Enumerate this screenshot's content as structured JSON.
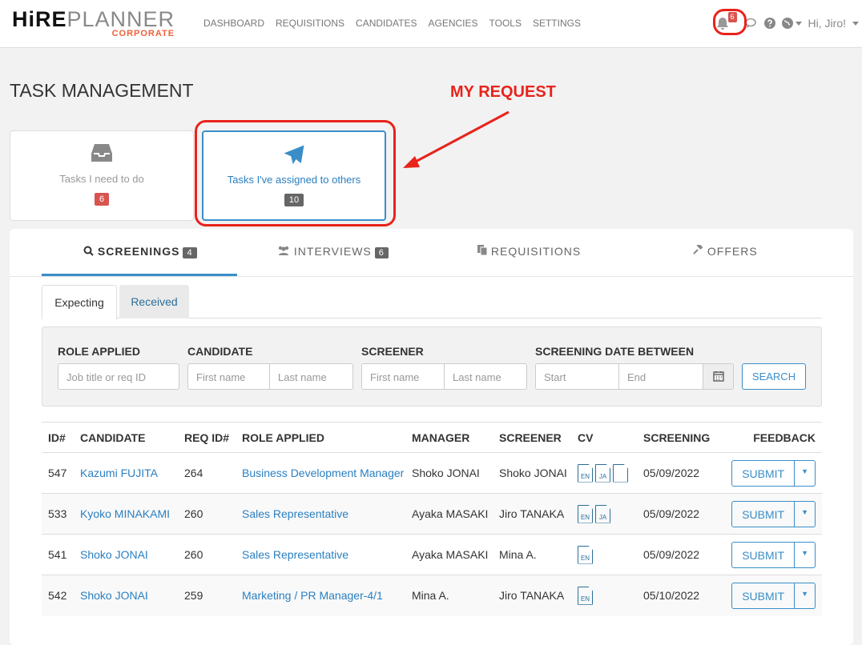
{
  "header": {
    "logo": {
      "hire": "HiRE",
      "planner": "PLANNER",
      "corporate": "CORPORATE"
    },
    "nav": [
      "DASHBOARD",
      "REQUISITIONS",
      "CANDIDATES",
      "AGENCIES",
      "TOOLS",
      "SETTINGS"
    ],
    "notifications": "6",
    "greeting": "Hi, Jiro!"
  },
  "page_title": "TASK MANAGEMENT",
  "annotation": "MY REQUEST",
  "cards": [
    {
      "label": "Tasks I need to do",
      "count": "6"
    },
    {
      "label": "Tasks I've assigned to others",
      "count": "10"
    }
  ],
  "tabs": [
    {
      "label": "SCREENINGS",
      "count": "4"
    },
    {
      "label": "INTERVIEWS",
      "count": "6"
    },
    {
      "label": "REQUISITIONS"
    },
    {
      "label": "OFFERS"
    }
  ],
  "subtabs": [
    "Expecting",
    "Received"
  ],
  "filters": {
    "role_label": "ROLE APPLIED",
    "role_ph": "Job title or req ID",
    "candidate_label": "CANDIDATE",
    "screener_label": "SCREENER",
    "date_label": "SCREENING DATE BETWEEN",
    "first_ph": "First name",
    "last_ph": "Last name",
    "start_ph": "Start",
    "end_ph": "End",
    "search": "SEARCH"
  },
  "table": {
    "headers": [
      "ID#",
      "CANDIDATE",
      "REQ ID#",
      "ROLE APPLIED",
      "MANAGER",
      "SCREENER",
      "CV",
      "SCREENING",
      "FEEDBACK"
    ],
    "rows": [
      {
        "id": "547",
        "candidate": "Kazumi FUJITA",
        "req": "264",
        "role": "Business Development Manager",
        "manager": "Shoko JONAI",
        "screener": "Shoko JONAI",
        "cv": [
          "EN",
          "JA",
          ""
        ],
        "date": "05/09/2022"
      },
      {
        "id": "533",
        "candidate": "Kyoko MINAKAMI",
        "req": "260",
        "role": "Sales Representative",
        "manager": "Ayaka MASAKI",
        "screener": "Jiro TANAKA",
        "cv": [
          "EN",
          "JA"
        ],
        "date": "05/09/2022"
      },
      {
        "id": "541",
        "candidate": "Shoko JONAI",
        "req": "260",
        "role": "Sales Representative",
        "manager": "Ayaka MASAKI",
        "screener": "Mina A.",
        "cv": [
          "EN"
        ],
        "date": "05/09/2022"
      },
      {
        "id": "542",
        "candidate": "Shoko JONAI",
        "req": "259",
        "role": "Marketing / PR Manager-4/1",
        "manager": "Mina A.",
        "screener": "Jiro TANAKA",
        "cv": [
          "EN"
        ],
        "date": "05/10/2022"
      }
    ],
    "submit": "SUBMIT"
  }
}
